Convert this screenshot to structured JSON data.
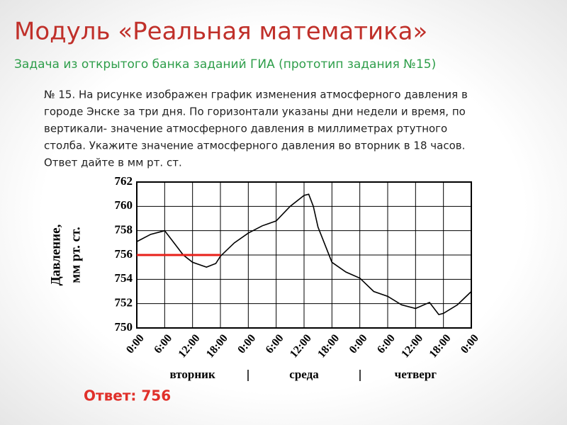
{
  "header": {
    "title": "Модуль «Реальная математика»",
    "subtitle": "Задача из открытого банка заданий ГИА (прототип задания №15)"
  },
  "problem": {
    "lines": [
      "№ 15. На рисунке изображен график изменения атмосферного давления в",
      "городе Энске за три дня. По горизонтали указаны дни недели и время, по",
      "вертикали- значение атмосферного давления в миллиметрах ртутного",
      "столба. Укажите значение атмосферного давления во вторник в 18 часов.",
      "Ответ дайте в мм  рт. ст."
    ]
  },
  "answer": "Ответ: 756",
  "chart_data": {
    "type": "line",
    "ylabel": [
      "Давление,",
      "мм рт. ст."
    ],
    "x": [
      0,
      3,
      6,
      9,
      10,
      12,
      15,
      17,
      18,
      21,
      24,
      27,
      30,
      33,
      36,
      37,
      38,
      39,
      42,
      45,
      48,
      51,
      54,
      57,
      60,
      63,
      65,
      66,
      69,
      72
    ],
    "values": [
      757.1,
      757.7,
      758,
      756.5,
      756,
      755.4,
      755,
      755.3,
      755.9,
      757,
      757.8,
      758.4,
      758.8,
      760,
      760.9,
      761,
      760,
      758.3,
      755.4,
      754.6,
      754.1,
      753,
      752.6,
      751.9,
      751.6,
      752.1,
      751.1,
      751.2,
      751.9,
      753
    ],
    "color": "#000000",
    "xlim": [
      0,
      72
    ],
    "xticks": [
      {
        "value": 0,
        "label": "0:00"
      },
      {
        "value": 6,
        "label": "6:00"
      },
      {
        "value": 12,
        "label": "12:00"
      },
      {
        "value": 18,
        "label": "18:00"
      },
      {
        "value": 24,
        "label": "0:00"
      },
      {
        "value": 30,
        "label": "6:00"
      },
      {
        "value": 36,
        "label": "12:00"
      },
      {
        "value": 42,
        "label": "18:00"
      },
      {
        "value": 48,
        "label": "0:00"
      },
      {
        "value": 54,
        "label": "6:00"
      },
      {
        "value": 60,
        "label": "12:00"
      },
      {
        "value": 66,
        "label": "18:00"
      },
      {
        "value": 72,
        "label": "0:00"
      }
    ],
    "days": [
      {
        "label": "вторник",
        "center": 12
      },
      {
        "label": "среда",
        "center": 36
      },
      {
        "label": "четверг",
        "center": 60
      }
    ],
    "ylim": [
      750,
      762
    ],
    "yticks": [
      750,
      752,
      754,
      756,
      758,
      760,
      762
    ],
    "grid": true,
    "highlight": {
      "x": [
        0,
        18
      ],
      "y": 756,
      "color": "#e8201a"
    }
  }
}
